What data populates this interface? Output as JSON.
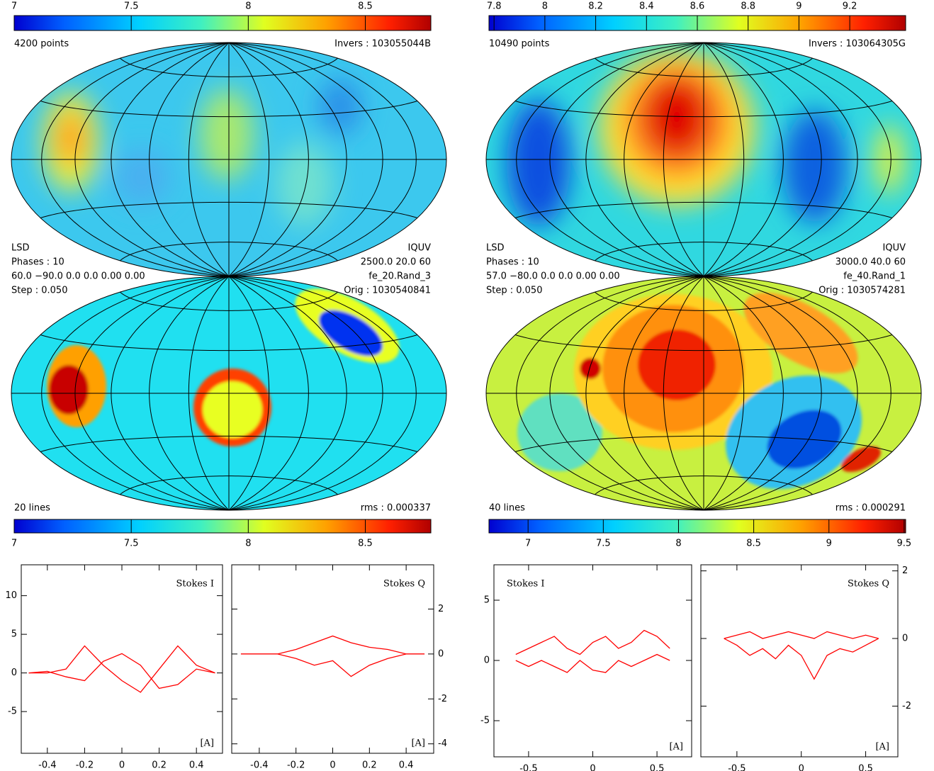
{
  "chart_data": [
    {
      "type": "colorbar",
      "xlim": [
        7,
        8.78
      ],
      "xticks": [
        7,
        7.5,
        8,
        8.5
      ]
    },
    {
      "type": "map",
      "left": [
        "4200 points"
      ],
      "right": [
        "Invers : 103055044B"
      ]
    },
    {
      "type": "map",
      "left": [
        "LSD",
        "Phases : 10",
        "60.0 −90.0 0.0 0.0 0.00 0.00",
        "Step : 0.050"
      ],
      "right": [
        "IQUV",
        "2500.0 20.0 60",
        "fe_20.Rand_3",
        "Orig : 1030540841"
      ],
      "footer_left": "20 lines",
      "footer_right": "rms :  0.000337"
    },
    {
      "type": "colorbar",
      "xlim": [
        7,
        8.78
      ],
      "xticks": [
        7,
        7.5,
        8,
        8.5
      ]
    },
    {
      "type": "colorbar",
      "xlim": [
        7.78,
        9.42
      ],
      "xticks": [
        7.8,
        8,
        8.2,
        8.4,
        8.6,
        8.8,
        9,
        9.2
      ]
    },
    {
      "type": "map",
      "left": [
        "10490 points"
      ],
      "right": [
        "Invers : 103064305G"
      ]
    },
    {
      "type": "map",
      "left": [
        "LSD",
        "Phases : 10",
        "57.0 −80.0 0.0 0.0 0.00 0.00",
        "Step : 0.050"
      ],
      "right": [
        "IQUV",
        "3000.0 40.0 60",
        "fe_40.Rand_1",
        "Orig : 1030574281"
      ],
      "footer_left": "40 lines",
      "footer_right": "rms :  0.000291"
    },
    {
      "type": "colorbar",
      "xlim": [
        6.74,
        9.51
      ],
      "xticks": [
        7,
        7.5,
        8,
        8.5,
        9,
        9.5
      ]
    },
    {
      "type": "line",
      "title": "Stokes I",
      "xlabel": "[A]",
      "xlim": [
        -0.54,
        0.54
      ],
      "ylim": [
        -10.4,
        14.0
      ],
      "xticks": [
        -0.4,
        -0.2,
        0,
        0.2,
        0.4
      ],
      "yticks": [
        -5,
        0,
        5,
        10
      ],
      "x": [
        -0.5,
        -0.4,
        -0.3,
        -0.2,
        -0.1,
        0,
        0.1,
        0.2,
        0.3,
        0.4,
        0.5
      ],
      "series": [
        {
          "color": "#ff0000",
          "values": [
            0,
            0,
            0.5,
            3.5,
            1,
            -1,
            -2.5,
            0.5,
            3.5,
            1,
            0
          ]
        },
        {
          "color": "#ff0000",
          "values": [
            0,
            0.2,
            -0.5,
            -1,
            1.5,
            2.5,
            1,
            -2,
            -1.5,
            0.5,
            0
          ]
        }
      ]
    },
    {
      "type": "line",
      "title": "Stokes Q",
      "xlabel": "[A]",
      "xlim": [
        -0.55,
        0.55
      ],
      "ylim": [
        -4.42,
        3.97
      ],
      "xticks": [
        -0.4,
        -0.2,
        0,
        0.2,
        0.4
      ],
      "yticks": [
        -4,
        -2,
        0,
        2
      ],
      "x": [
        -0.5,
        -0.4,
        -0.3,
        -0.2,
        -0.1,
        0,
        0.1,
        0.2,
        0.3,
        0.4,
        0.5
      ],
      "series": [
        {
          "color": "#ff0000",
          "values": [
            0,
            0,
            0,
            0.2,
            0.5,
            0.8,
            0.5,
            0.3,
            0.2,
            0,
            0
          ]
        },
        {
          "color": "#ff0000",
          "values": [
            0,
            0,
            0,
            -0.2,
            -0.5,
            -0.3,
            -1,
            -0.5,
            -0.2,
            0,
            0
          ]
        }
      ]
    },
    {
      "type": "line",
      "title": "Stokes I",
      "xlabel": "[A]",
      "xlim": [
        -0.77,
        0.77
      ],
      "ylim": [
        -8.0,
        7.94
      ],
      "xticks": [
        -0.5,
        0,
        0.5
      ],
      "yticks": [
        -5,
        0,
        5
      ],
      "x": [
        -0.6,
        -0.5,
        -0.4,
        -0.3,
        -0.2,
        -0.1,
        0,
        0.1,
        0.2,
        0.3,
        0.4,
        0.5,
        0.6
      ],
      "series": [
        {
          "color": "#ff0000",
          "values": [
            0.5,
            1,
            1.5,
            2,
            1,
            0.5,
            1.5,
            2,
            1,
            1.5,
            2.5,
            2,
            1
          ]
        },
        {
          "color": "#ff0000",
          "values": [
            0,
            -0.5,
            0,
            -0.5,
            -1,
            0,
            -0.8,
            -1,
            0,
            -0.5,
            0,
            0.5,
            0
          ]
        }
      ]
    },
    {
      "type": "line",
      "title": "Stokes Q",
      "xlabel": "[A]",
      "xlim": [
        -0.78,
        0.75
      ],
      "ylim": [
        -3.5,
        2.18
      ],
      "xticks": [
        -0.5,
        0,
        0.5
      ],
      "yticks": [
        -2,
        0,
        2
      ],
      "x": [
        -0.6,
        -0.5,
        -0.4,
        -0.3,
        -0.2,
        -0.1,
        0,
        0.1,
        0.2,
        0.3,
        0.4,
        0.5,
        0.6
      ],
      "series": [
        {
          "color": "#ff0000",
          "values": [
            0,
            0.1,
            0.2,
            0,
            0.1,
            0.2,
            0.1,
            0,
            0.2,
            0.1,
            0,
            0.1,
            0
          ]
        },
        {
          "color": "#ff0000",
          "values": [
            0,
            -0.2,
            -0.5,
            -0.3,
            -0.6,
            -0.2,
            -0.5,
            -1.2,
            -0.5,
            -0.3,
            -0.4,
            -0.2,
            0
          ]
        }
      ]
    }
  ]
}
